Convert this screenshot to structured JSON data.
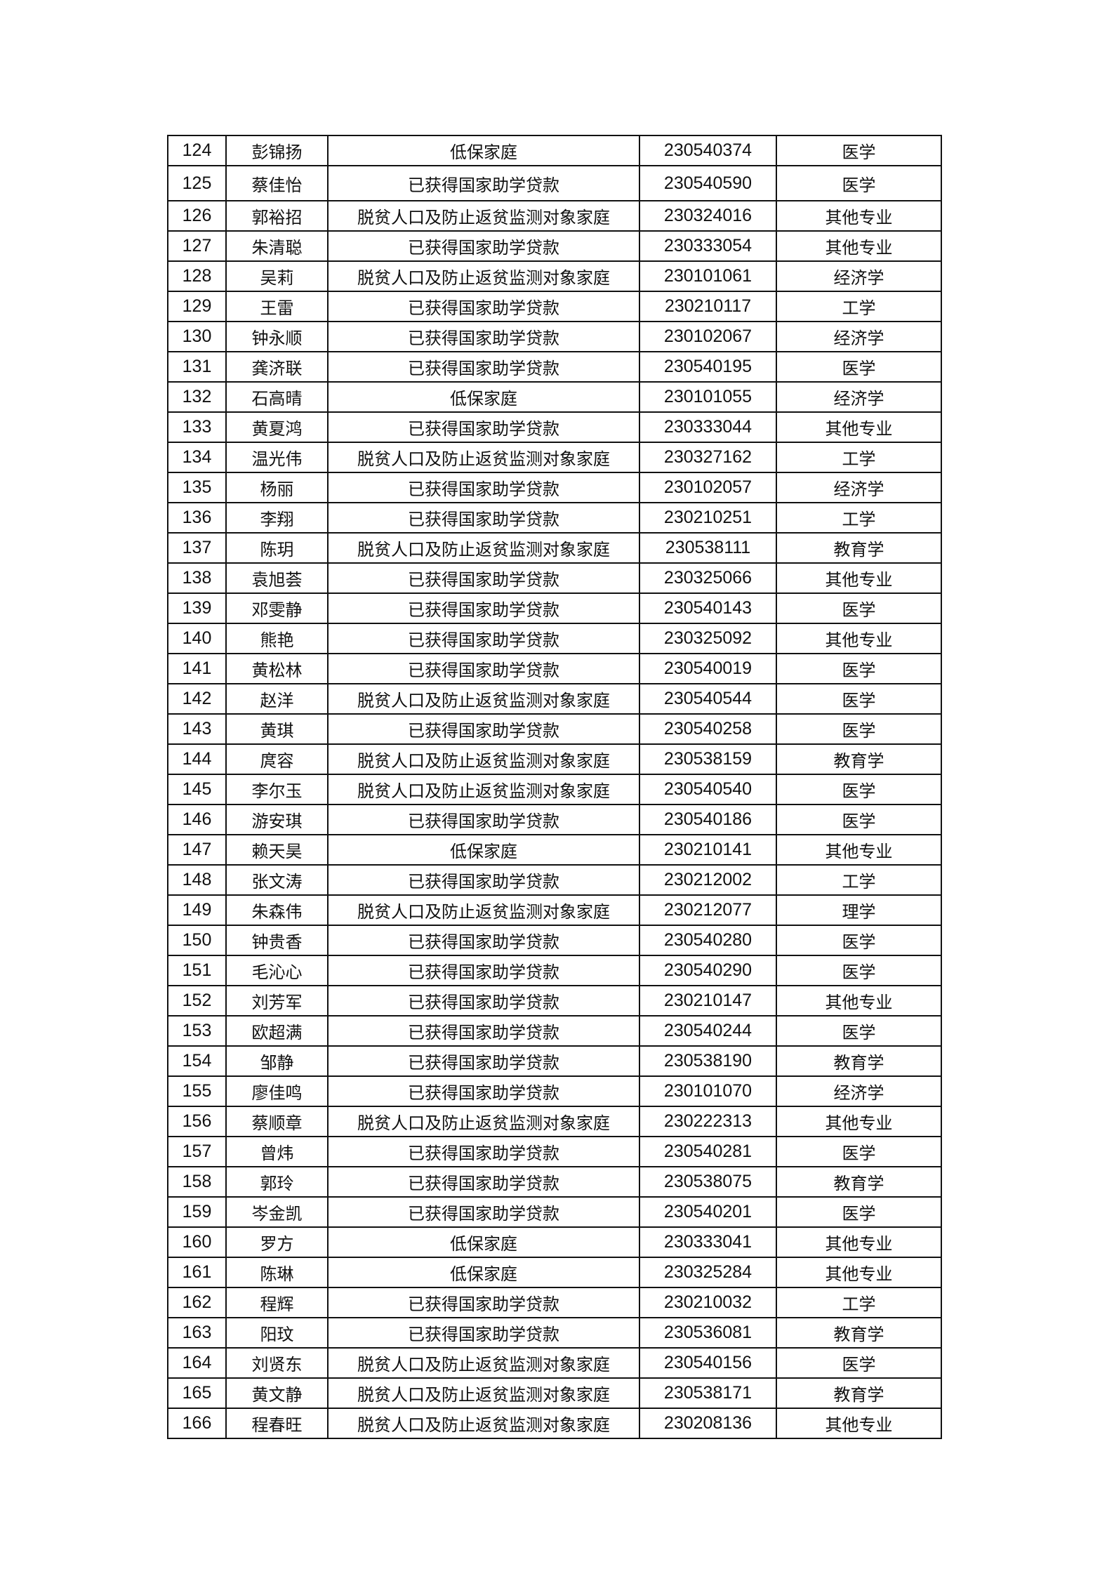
{
  "table": {
    "rows": [
      [
        "124",
        "彭锦扬",
        "低保家庭",
        "230540374",
        "医学"
      ],
      [
        "125",
        "蔡佳怡",
        "已获得国家助学贷款",
        "230540590",
        "医学"
      ],
      [
        "126",
        "郭裕招",
        "脱贫人口及防止返贫监测对象家庭",
        "230324016",
        "其他专业"
      ],
      [
        "127",
        "朱清聪",
        "已获得国家助学贷款",
        "230333054",
        "其他专业"
      ],
      [
        "128",
        "吴莉",
        "脱贫人口及防止返贫监测对象家庭",
        "230101061",
        "经济学"
      ],
      [
        "129",
        "王雷",
        "已获得国家助学贷款",
        "230210117",
        "工学"
      ],
      [
        "130",
        "钟永顺",
        "已获得国家助学贷款",
        "230102067",
        "经济学"
      ],
      [
        "131",
        "龚济联",
        "已获得国家助学贷款",
        "230540195",
        "医学"
      ],
      [
        "132",
        "石高晴",
        "低保家庭",
        "230101055",
        "经济学"
      ],
      [
        "133",
        "黄夏鸿",
        "已获得国家助学贷款",
        "230333044",
        "其他专业"
      ],
      [
        "134",
        "温光伟",
        "脱贫人口及防止返贫监测对象家庭",
        "230327162",
        "工学"
      ],
      [
        "135",
        "杨丽",
        "已获得国家助学贷款",
        "230102057",
        "经济学"
      ],
      [
        "136",
        "李翔",
        "已获得国家助学贷款",
        "230210251",
        "工学"
      ],
      [
        "137",
        "陈玥",
        "脱贫人口及防止返贫监测对象家庭",
        "230538111",
        "教育学"
      ],
      [
        "138",
        "袁旭荟",
        "已获得国家助学贷款",
        "230325066",
        "其他专业"
      ],
      [
        "139",
        "邓雯静",
        "已获得国家助学贷款",
        "230540143",
        "医学"
      ],
      [
        "140",
        "熊艳",
        "已获得国家助学贷款",
        "230325092",
        "其他专业"
      ],
      [
        "141",
        "黄松林",
        "已获得国家助学贷款",
        "230540019",
        "医学"
      ],
      [
        "142",
        "赵洋",
        "脱贫人口及防止返贫监测对象家庭",
        "230540544",
        "医学"
      ],
      [
        "143",
        "黄琪",
        "已获得国家助学贷款",
        "230540258",
        "医学"
      ],
      [
        "144",
        "庹容",
        "脱贫人口及防止返贫监测对象家庭",
        "230538159",
        "教育学"
      ],
      [
        "145",
        "李尔玉",
        "脱贫人口及防止返贫监测对象家庭",
        "230540540",
        "医学"
      ],
      [
        "146",
        "游安琪",
        "已获得国家助学贷款",
        "230540186",
        "医学"
      ],
      [
        "147",
        "赖天昊",
        "低保家庭",
        "230210141",
        "其他专业"
      ],
      [
        "148",
        "张文涛",
        "已获得国家助学贷款",
        "230212002",
        "工学"
      ],
      [
        "149",
        "朱森伟",
        "脱贫人口及防止返贫监测对象家庭",
        "230212077",
        "理学"
      ],
      [
        "150",
        "钟贵香",
        "已获得国家助学贷款",
        "230540280",
        "医学"
      ],
      [
        "151",
        "毛沁心",
        "已获得国家助学贷款",
        "230540290",
        "医学"
      ],
      [
        "152",
        "刘芳军",
        "已获得国家助学贷款",
        "230210147",
        "其他专业"
      ],
      [
        "153",
        "欧超满",
        "已获得国家助学贷款",
        "230540244",
        "医学"
      ],
      [
        "154",
        "邹静",
        "已获得国家助学贷款",
        "230538190",
        "教育学"
      ],
      [
        "155",
        "廖佳鸣",
        "已获得国家助学贷款",
        "230101070",
        "经济学"
      ],
      [
        "156",
        "蔡顺章",
        "脱贫人口及防止返贫监测对象家庭",
        "230222313",
        "其他专业"
      ],
      [
        "157",
        "曾炜",
        "已获得国家助学贷款",
        "230540281",
        "医学"
      ],
      [
        "158",
        "郭玲",
        "已获得国家助学贷款",
        "230538075",
        "教育学"
      ],
      [
        "159",
        "岑金凯",
        "已获得国家助学贷款",
        "230540201",
        "医学"
      ],
      [
        "160",
        "罗方",
        "低保家庭",
        "230333041",
        "其他专业"
      ],
      [
        "161",
        "陈琳",
        "低保家庭",
        "230325284",
        "其他专业"
      ],
      [
        "162",
        "程辉",
        "已获得国家助学贷款",
        "230210032",
        "工学"
      ],
      [
        "163",
        "阳玟",
        "已获得国家助学贷款",
        "230536081",
        "教育学"
      ],
      [
        "164",
        "刘贤东",
        "脱贫人口及防止返贫监测对象家庭",
        "230540156",
        "医学"
      ],
      [
        "165",
        "黄文静",
        "脱贫人口及防止返贫监测对象家庭",
        "230538171",
        "教育学"
      ],
      [
        "166",
        "程春旺",
        "脱贫人口及防止返贫监测对象家庭",
        "230208136",
        "其他专业"
      ]
    ]
  }
}
